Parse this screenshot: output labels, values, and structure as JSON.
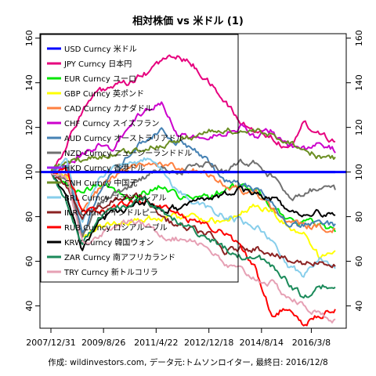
{
  "chart_data": {
    "type": "line",
    "title": "相対株価 vs 米ドル (1)",
    "caption": "作成: wildinvestors.com, データ元:トムソンロイター, 最終日: 2016/12/8",
    "x_tick_labels": [
      "2007/12/31",
      "2009/8/26",
      "2011/4/22",
      "2012/12/18",
      "2014/8/14",
      "2016/3/8"
    ],
    "x_range": [
      "2007-12-31",
      "2016-12-08"
    ],
    "ylim": [
      30,
      162
    ],
    "y_ticks": [
      40,
      60,
      80,
      100,
      120,
      140,
      160
    ],
    "grid": false,
    "legend_position": "top-left",
    "reference_value": 100,
    "series": [
      {
        "name": "USD Curncy 米ドル",
        "color": "#0000ff",
        "values": [
          100,
          100,
          100,
          100,
          100,
          100,
          100,
          100,
          100,
          100,
          100,
          100,
          100,
          100,
          100,
          100,
          100,
          100,
          100
        ]
      },
      {
        "name": "JPY Curncy 日本円",
        "color": "#e6007e",
        "values": [
          100,
          112,
          128,
          136,
          138,
          140,
          144,
          150,
          152,
          148,
          140,
          132,
          122,
          118,
          116,
          110,
          122,
          118,
          114
        ]
      },
      {
        "name": "EUR Curncy ユーロ",
        "color": "#00e600",
        "values": [
          100,
          95,
          90,
          95,
          92,
          88,
          91,
          94,
          90,
          88,
          89,
          92,
          94,
          92,
          84,
          79,
          78,
          77,
          74
        ]
      },
      {
        "name": "GBP Curncy 英ポンド",
        "color": "#ffff00",
        "values": [
          100,
          98,
          72,
          75,
          77,
          78,
          79,
          80,
          80,
          80,
          79,
          77,
          82,
          85,
          82,
          75,
          73,
          62,
          63
        ]
      },
      {
        "name": "CAD Curncy カナダドル",
        "color": "#ff8040",
        "values": [
          100,
          99,
          82,
          92,
          98,
          102,
          103,
          104,
          102,
          101,
          98,
          94,
          92,
          90,
          84,
          78,
          76,
          75,
          75
        ]
      },
      {
        "name": "CHF Curncy スイスフラン",
        "color": "#cc00cc",
        "values": [
          100,
          103,
          108,
          112,
          110,
          122,
          128,
          132,
          118,
          116,
          115,
          118,
          120,
          116,
          118,
          112,
          110,
          112,
          110
        ]
      },
      {
        "name": "AUD Curncy オーストラリアドル",
        "color": "#4682b4",
        "values": [
          100,
          102,
          72,
          90,
          100,
          108,
          115,
          118,
          114,
          110,
          104,
          96,
          94,
          92,
          86,
          76,
          76,
          78,
          76
        ]
      },
      {
        "name": "NZD Curncy ニュージーランドドル",
        "color": "#707070",
        "values": [
          100,
          97,
          72,
          85,
          90,
          94,
          98,
          102,
          100,
          102,
          104,
          100,
          104,
          104,
          98,
          88,
          90,
          94,
          92
        ]
      },
      {
        "name": "HKD Curncy 香港ドル",
        "color": "#a020f0",
        "values": [
          100,
          100,
          100,
          100,
          100,
          100,
          100,
          100,
          100,
          100,
          100,
          100,
          100,
          100,
          100,
          100,
          100,
          100,
          100
        ]
      },
      {
        "name": "CNH Curncy 中国元",
        "color": "#6b8e23",
        "values": [
          100,
          104,
          106,
          107,
          108,
          109,
          111,
          112,
          114,
          116,
          118,
          119,
          118,
          118,
          116,
          114,
          110,
          107,
          106
        ]
      },
      {
        "name": "BRL Curncy ブラジルレアル",
        "color": "#87ceeb",
        "values": [
          100,
          105,
          78,
          96,
          102,
          104,
          106,
          100,
          92,
          86,
          84,
          80,
          78,
          76,
          68,
          58,
          54,
          62,
          58
        ]
      },
      {
        "name": "INR Curncy インドルピー",
        "color": "#8b2222",
        "values": [
          100,
          92,
          80,
          84,
          88,
          90,
          88,
          80,
          76,
          74,
          72,
          64,
          66,
          66,
          64,
          60,
          59,
          60,
          58
        ]
      },
      {
        "name": "RUB Curncy ロシアルーブル",
        "color": "#ff0000",
        "values": [
          100,
          101,
          82,
          82,
          84,
          86,
          88,
          84,
          82,
          78,
          76,
          72,
          66,
          56,
          36,
          40,
          32,
          36,
          38
        ]
      },
      {
        "name": "KRW Curncy 韓国ウォン",
        "color": "#000000",
        "values": [
          100,
          88,
          64,
          78,
          82,
          84,
          86,
          84,
          84,
          86,
          88,
          90,
          92,
          90,
          88,
          84,
          80,
          82,
          80
        ]
      },
      {
        "name": "ZAR Curncy 南アフリカランド",
        "color": "#1b8a5a",
        "values": [
          100,
          86,
          68,
          78,
          84,
          86,
          88,
          82,
          78,
          74,
          70,
          66,
          62,
          62,
          58,
          50,
          44,
          48,
          50
        ]
      },
      {
        "name": "TRY Curncy 新トルコリラ",
        "color": "#e6a0b4",
        "values": [
          100,
          98,
          68,
          72,
          76,
          78,
          76,
          72,
          70,
          70,
          66,
          58,
          56,
          52,
          50,
          44,
          40,
          36,
          34
        ]
      }
    ]
  }
}
